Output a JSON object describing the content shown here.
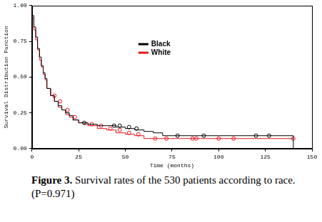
{
  "chart_data": {
    "type": "line",
    "caption_label": "Figure 3.",
    "caption": "Survival rates of the 530 patients according to race. (P=0.971)",
    "x_label": "Time (months)",
    "y_label": "Survival Distribution Function",
    "x": [
      0,
      1,
      2,
      3,
      4,
      5,
      6,
      7,
      8,
      10,
      12,
      14,
      16,
      18,
      20,
      22,
      25,
      28,
      30,
      35,
      40,
      45,
      50,
      55,
      60,
      65,
      70,
      75,
      80,
      90,
      100,
      110,
      120,
      130,
      140,
      145
    ],
    "series": [
      {
        "name": "Black",
        "color": "#000000",
        "line_style": "solid",
        "marker": "circle",
        "values": [
          1.0,
          0.93,
          0.85,
          0.78,
          0.7,
          0.64,
          0.58,
          0.53,
          0.49,
          0.42,
          0.37,
          0.33,
          0.3,
          0.27,
          0.25,
          0.23,
          0.2,
          0.18,
          0.18,
          0.17,
          0.16,
          0.16,
          0.15,
          0.14,
          0.13,
          0.12,
          0.11,
          0.09,
          0.09,
          0.09,
          0.09,
          0.09,
          0.09,
          0.09,
          0.09,
          0.0
        ],
        "censored": [
          [
            28,
            0.18
          ],
          [
            44,
            0.16
          ],
          [
            47,
            0.16
          ],
          [
            52,
            0.15
          ],
          [
            56,
            0.14
          ],
          [
            78,
            0.09
          ],
          [
            92,
            0.09
          ],
          [
            120,
            0.09
          ],
          [
            127,
            0.09
          ]
        ]
      },
      {
        "name": "White",
        "color": "#e8141e",
        "line_style": "solid",
        "marker": "circle",
        "values": [
          1.0,
          0.91,
          0.83,
          0.76,
          0.69,
          0.62,
          0.57,
          0.52,
          0.48,
          0.42,
          0.37,
          0.33,
          0.29,
          0.27,
          0.24,
          0.22,
          0.2,
          0.18,
          0.17,
          0.16,
          0.14,
          0.13,
          0.11,
          0.1,
          0.09,
          0.07,
          0.07,
          0.07,
          0.07,
          0.07,
          0.07,
          0.07,
          0.07,
          0.07,
          0.07,
          null
        ],
        "censored": [
          [
            12,
            0.37
          ],
          [
            15,
            0.33
          ],
          [
            19,
            0.27
          ],
          [
            23,
            0.22
          ],
          [
            32,
            0.17
          ],
          [
            37,
            0.16
          ],
          [
            42,
            0.14
          ],
          [
            47,
            0.13
          ],
          [
            52,
            0.11
          ],
          [
            57,
            0.1
          ],
          [
            66,
            0.07
          ],
          [
            72,
            0.07
          ],
          [
            86,
            0.07
          ],
          [
            88,
            0.07
          ],
          [
            100,
            0.07
          ],
          [
            108,
            0.07
          ],
          [
            140,
            0.07
          ]
        ]
      }
    ],
    "xlim": [
      0,
      150
    ],
    "xticks": [
      0,
      25,
      50,
      75,
      100,
      125,
      150
    ],
    "ylim": [
      0,
      1
    ],
    "yticks": [
      {
        "value": 0,
        "label": "0.00"
      },
      {
        "value": 0.25,
        "label": "0.25"
      },
      {
        "value": 0.5,
        "label": "0.50"
      },
      {
        "value": 0.75,
        "label": "0.75"
      },
      {
        "value": 1,
        "label": "1.00"
      }
    ],
    "grid": false,
    "legend": "center"
  }
}
